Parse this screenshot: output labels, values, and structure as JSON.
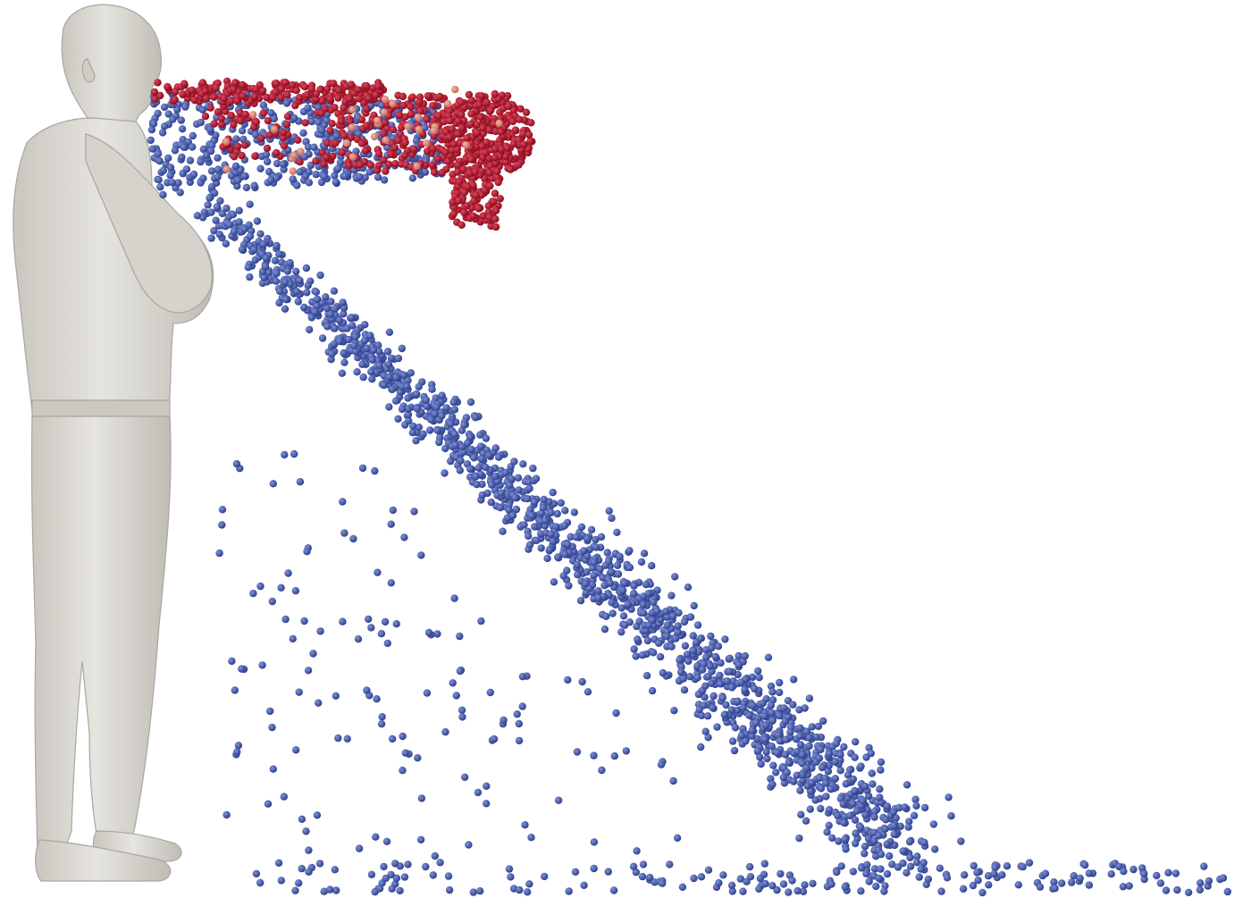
{
  "scene": {
    "background_color": "#ffffff",
    "subject": {
      "description_icon": "standing-human-figure-icon",
      "color": "#dad8d2",
      "shade_color": "#b8b5ae"
    },
    "particles": {
      "cold_color": "#3d51a2",
      "hot_color": "#b0102a",
      "warm_color": "#e08a7a",
      "light_color": "#8ea2d6"
    }
  }
}
